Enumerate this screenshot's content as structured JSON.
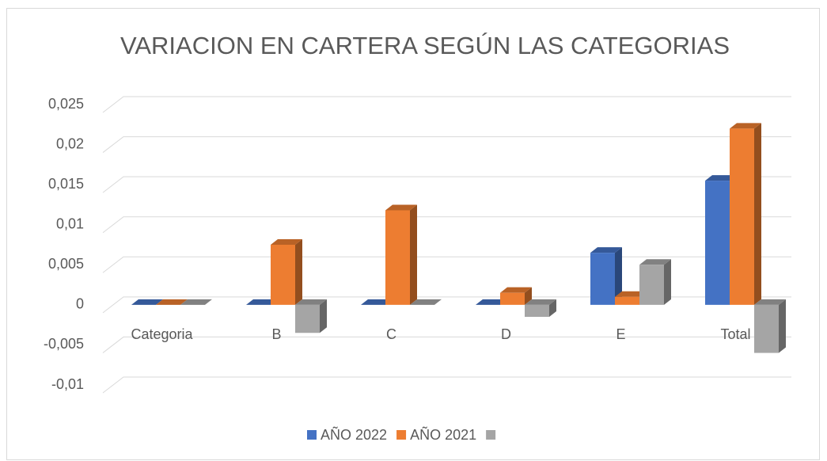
{
  "chart_data": {
    "type": "bar3d",
    "title": "VARIACION EN CARTERA SEGÚN LAS CATEGORIAS",
    "categories": [
      "Categoria",
      "B",
      "C",
      "D",
      "E",
      "Total"
    ],
    "series": [
      {
        "name": "AÑO 2022",
        "color": "#4472c4",
        "values": [
          0,
          0,
          0,
          0,
          0.0065,
          0.0155
        ]
      },
      {
        "name": "AÑO 2021",
        "color": "#ed7d31",
        "values": [
          0,
          0.0075,
          0.0118,
          0.0015,
          0.001,
          0.022
        ]
      },
      {
        "color": "#a5a5a5",
        "values": [
          0,
          -0.0035,
          0,
          -0.0015,
          0.005,
          -0.006
        ]
      }
    ],
    "ylim": [
      -0.01,
      0.025
    ],
    "yticks": [
      {
        "value": -0.01,
        "label": "-0,01"
      },
      {
        "value": -0.005,
        "label": "-0,005"
      },
      0,
      {
        "value": 0.005,
        "label": "0,005"
      },
      {
        "value": 0.01,
        "label": "0,01"
      },
      {
        "value": 0.015,
        "label": "0,015"
      },
      {
        "value": 0.02,
        "label": "0,02"
      },
      {
        "value": 0.025,
        "label": "0,025"
      }
    ],
    "grid": true,
    "legend": "bottom"
  }
}
